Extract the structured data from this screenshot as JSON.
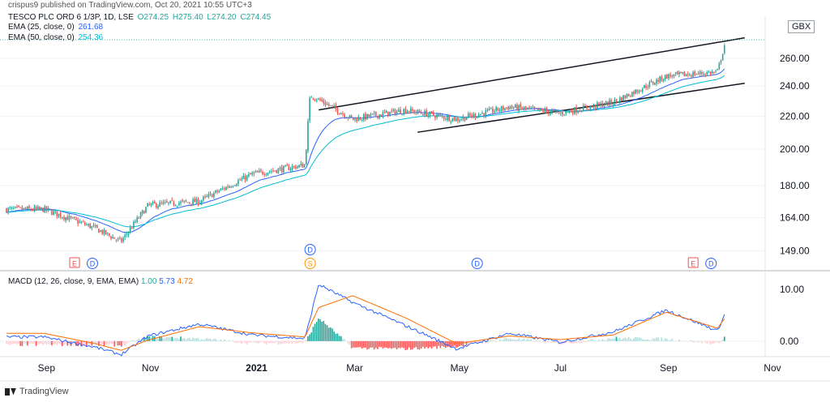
{
  "publisher_line": "crispus9 published on TradingView.com, Oct 20, 2021 10:55 UTC+3",
  "symbol_title": "TESCO PLC ORD 6 1/3P, 1D, LSE",
  "ohlc": {
    "o": "O274.25",
    "h": "H275.40",
    "l": "L274.20",
    "c": "C274.45"
  },
  "ema25": {
    "label": "EMA (25, close, 0)",
    "value": "261.68"
  },
  "ema50": {
    "label": "EMA (50, close, 0)",
    "value": "254.36"
  },
  "currency": "GBX",
  "macd": {
    "label": "MACD (12, 26, close, 9, EMA, EMA)",
    "histogram": "1.00",
    "macd": "5.73",
    "signal": "4.72"
  },
  "footer_brand": "TradingView",
  "colors": {
    "up": "#26a69a",
    "down": "#ef5350",
    "ema25": "#2962ff",
    "ema50": "#00bcd4",
    "macd_line": "#2962ff",
    "signal_line": "#ff6d00",
    "trend": "#131722"
  },
  "chart_data": {
    "type": "candlestick",
    "price_axis": {
      "scale": "log",
      "ticks": [
        149,
        164,
        180,
        200,
        220,
        240,
        260
      ],
      "tick_labels": [
        "149.00",
        "164.00",
        "180.00",
        "200.00",
        "220.00",
        "240.00",
        "260.00"
      ]
    },
    "time_axis": {
      "labels": [
        "Sep",
        "Nov",
        "2021",
        "Mar",
        "May",
        "Jul",
        "Sep",
        "Nov"
      ]
    },
    "price_series": [
      {
        "date": "2020-09",
        "close": 168
      },
      {
        "date": "2020-10",
        "close": 159
      },
      {
        "date": "2020-10-30",
        "close": 153
      },
      {
        "date": "2020-11",
        "close": 170
      },
      {
        "date": "2020-12",
        "close": 172
      },
      {
        "date": "2021-01",
        "close": 186
      },
      {
        "date": "2021-02",
        "close": 191
      },
      {
        "date": "2021-02-18",
        "close": 234
      },
      {
        "date": "2021-03",
        "close": 218
      },
      {
        "date": "2021-04",
        "close": 224
      },
      {
        "date": "2021-05",
        "close": 218
      },
      {
        "date": "2021-06",
        "close": 226
      },
      {
        "date": "2021-07",
        "close": 222
      },
      {
        "date": "2021-08",
        "close": 229
      },
      {
        "date": "2021-09",
        "close": 247
      },
      {
        "date": "2021-10",
        "close": 250
      },
      {
        "date": "2021-10-20",
        "close": 274.45
      }
    ],
    "trend_channel": {
      "upper": [
        {
          "date": "2021-02-23",
          "price": 224
        },
        {
          "date": "2021-10-31",
          "price": 276
        }
      ],
      "lower": [
        {
          "date": "2021-04-22",
          "price": 210
        },
        {
          "date": "2021-10-31",
          "price": 242
        }
      ]
    },
    "event_markers": [
      {
        "date": "2020-10-08",
        "label": "E",
        "kind": "earnings"
      },
      {
        "date": "2020-10-08",
        "label": "D",
        "kind": "dividend"
      },
      {
        "date": "2021-02-18",
        "label": "D",
        "kind": "dividend"
      },
      {
        "date": "2021-02-18",
        "label": "S",
        "kind": "split"
      },
      {
        "date": "2021-05-27",
        "label": "D",
        "kind": "dividend"
      },
      {
        "date": "2021-10-06",
        "label": "E",
        "kind": "earnings"
      },
      {
        "date": "2021-10-06",
        "label": "D",
        "kind": "dividend"
      }
    ],
    "macd_axis": {
      "ticks": [
        0,
        10
      ],
      "tick_labels": [
        "0.00",
        "10.00"
      ]
    },
    "macd_series": [
      {
        "date": "2020-09",
        "macd": 0.8
      },
      {
        "date": "2020-10",
        "macd": -1.2
      },
      {
        "date": "2020-10-30",
        "macd": -2.6
      },
      {
        "date": "2020-11",
        "macd": 1.0
      },
      {
        "date": "2020-12",
        "macd": 3.3
      },
      {
        "date": "2021-01",
        "macd": 1.2
      },
      {
        "date": "2021-02",
        "macd": 0.5
      },
      {
        "date": "2021-02-23",
        "macd": 11.0
      },
      {
        "date": "2021-03",
        "macd": 7.5
      },
      {
        "date": "2021-04",
        "macd": 3.0
      },
      {
        "date": "2021-05",
        "macd": -1.5
      },
      {
        "date": "2021-06",
        "macd": 1.5
      },
      {
        "date": "2021-07",
        "macd": -0.2
      },
      {
        "date": "2021-08",
        "macd": 1.8
      },
      {
        "date": "2021-09",
        "macd": 6.0
      },
      {
        "date": "2021-10",
        "macd": 2.0
      },
      {
        "date": "2021-10-20",
        "macd": 5.73
      }
    ],
    "signal_series": [
      {
        "date": "2020-09",
        "signal": 1.5
      },
      {
        "date": "2020-10",
        "signal": -0.5
      },
      {
        "date": "2020-10-30",
        "signal": -1.8
      },
      {
        "date": "2020-11",
        "signal": 0.2
      },
      {
        "date": "2020-12",
        "signal": 2.8
      },
      {
        "date": "2021-01",
        "signal": 1.6
      },
      {
        "date": "2021-02",
        "signal": 0.8
      },
      {
        "date": "2021-02-23",
        "signal": 6.5
      },
      {
        "date": "2021-03",
        "signal": 8.8
      },
      {
        "date": "2021-04",
        "signal": 4.5
      },
      {
        "date": "2021-05",
        "signal": -0.5
      },
      {
        "date": "2021-06",
        "signal": 1.0
      },
      {
        "date": "2021-07",
        "signal": 0.3
      },
      {
        "date": "2021-08",
        "signal": 1.2
      },
      {
        "date": "2021-09",
        "signal": 5.6
      },
      {
        "date": "2021-10",
        "signal": 2.5
      },
      {
        "date": "2021-10-20",
        "signal": 4.72
      }
    ]
  }
}
